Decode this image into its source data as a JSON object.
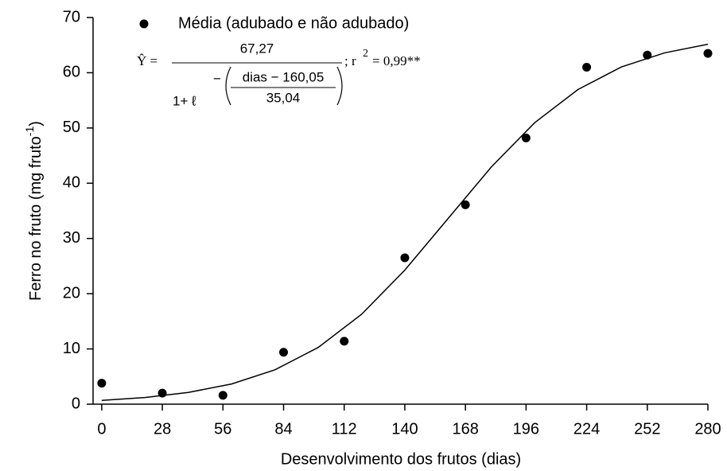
{
  "chart_data": {
    "type": "scatter",
    "xlabel": "Desenvolvimento dos frutos (dias)",
    "ylabel": {
      "text": "Ferro no fruto (mg fruto",
      "sup": "-1",
      "end": ")"
    },
    "xlim": [
      -4,
      280
    ],
    "ylim": [
      0,
      70
    ],
    "xticks": [
      0,
      28,
      56,
      84,
      112,
      140,
      168,
      196,
      224,
      252,
      280
    ],
    "yticks": [
      0,
      10,
      20,
      30,
      40,
      50,
      60,
      70
    ],
    "legend": "top-left",
    "series": [
      {
        "name": "Média (adubado e não adubado)",
        "type": "scatter",
        "color": "#000000",
        "x": [
          0,
          28,
          56,
          84,
          112,
          140,
          168,
          196,
          224,
          252,
          280
        ],
        "values": [
          3.8,
          2.0,
          1.6,
          9.4,
          11.4,
          26.5,
          36.1,
          48.2,
          61.0,
          63.2,
          63.5
        ]
      },
      {
        "type": "line",
        "color": "#000000",
        "x": [
          0,
          20,
          40,
          60,
          80,
          100,
          120,
          140,
          160,
          180,
          200,
          220,
          240,
          260,
          280
        ],
        "values": [
          0.69,
          1.21,
          2.12,
          3.66,
          6.22,
          10.27,
          16.26,
          24.27,
          33.61,
          42.96,
          50.96,
          56.97,
          61.04,
          63.6,
          65.15
        ]
      }
    ],
    "equation": {
      "lhs": "Ŷ =",
      "numerator": "67,27",
      "denominator": "1+ ℓ",
      "exp_sign": "−",
      "exp_numerator": "dias − 160,05",
      "exp_denominator": "35,04",
      "r_text": "; r",
      "r_sup": "2",
      "r_value": "= 0,99**"
    }
  }
}
